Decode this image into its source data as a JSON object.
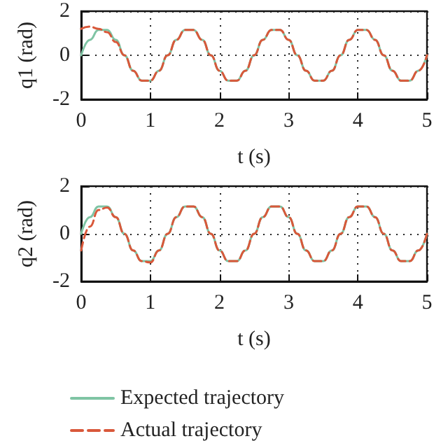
{
  "chart_data": [
    {
      "type": "line",
      "ylabel": "q1 (rad)",
      "xlabel": "t (s)",
      "xlim": [
        0,
        5
      ],
      "xticks": [
        0,
        1,
        2,
        3,
        4,
        5
      ],
      "ylim": [
        -2,
        2
      ],
      "yticks": [
        -2,
        0,
        2
      ],
      "grid": true,
      "legend": false,
      "marker": "none",
      "series": [
        {
          "color": "#7fc4a4",
          "line_style": "solid",
          "x": [
            0,
            0.125,
            0.25,
            0.375,
            0.5,
            0.625,
            0.75,
            0.875,
            1,
            1.125,
            1.25,
            1.375,
            1.5,
            1.625,
            1.75,
            1.875,
            2,
            2.125,
            2.25,
            2.375,
            2.5,
            2.625,
            2.75,
            2.875,
            3,
            3.125,
            3.25,
            3.375,
            3.5,
            3.625,
            3.75,
            3.875,
            4,
            4.125,
            4.25,
            4.375,
            4.5,
            4.625,
            4.75,
            4.875,
            5
          ],
          "values": [
            0,
            0.7,
            1.15,
            1.15,
            0.7,
            0,
            -0.7,
            -1.15,
            -1.15,
            -0.7,
            0,
            0.7,
            1.15,
            1.15,
            0.7,
            0,
            -0.7,
            -1.15,
            -1.15,
            -0.7,
            0,
            0.7,
            1.15,
            1.15,
            0.7,
            0,
            -0.7,
            -1.15,
            -1.15,
            -0.7,
            0,
            0.7,
            1.15,
            1.15,
            0.7,
            0,
            -0.7,
            -1.15,
            -1.15,
            -0.7,
            0
          ]
        },
        {
          "color": "#d9583a",
          "line_style": "dashed",
          "x": [
            0,
            0.125,
            0.25,
            0.375,
            0.5,
            0.625,
            0.75,
            0.875,
            1,
            1.125,
            1.25,
            1.375,
            1.5,
            1.625,
            1.75,
            1.875,
            2,
            2.125,
            2.25,
            2.375,
            2.5,
            2.625,
            2.75,
            2.875,
            3,
            3.125,
            3.25,
            3.375,
            3.5,
            3.625,
            3.75,
            3.875,
            4,
            4.125,
            4.25,
            4.375,
            4.5,
            4.625,
            4.75,
            4.875,
            5
          ],
          "values": [
            1.2,
            1.3,
            1.2,
            1.05,
            0.6,
            0,
            -0.7,
            -1.15,
            -1.15,
            -0.7,
            0,
            0.7,
            1.15,
            1.15,
            0.7,
            0,
            -0.7,
            -1.15,
            -1.15,
            -0.7,
            0,
            0.7,
            1.15,
            1.15,
            0.7,
            0,
            -0.7,
            -1.15,
            -1.15,
            -0.7,
            0,
            0.7,
            1.15,
            1.15,
            0.7,
            0,
            -0.7,
            -1.15,
            -1.15,
            -0.7,
            0
          ]
        }
      ]
    },
    {
      "type": "line",
      "ylabel": "q2 (rad)",
      "xlabel": "t (s)",
      "xlim": [
        0,
        5
      ],
      "xticks": [
        0,
        1,
        2,
        3,
        4,
        5
      ],
      "ylim": [
        -2,
        2
      ],
      "yticks": [
        -2,
        0,
        2
      ],
      "grid": true,
      "legend": "bottom",
      "marker": "none",
      "series": [
        {
          "name": "Expected trajectory",
          "color": "#7fc4a4",
          "line_style": "solid",
          "x": [
            0,
            0.125,
            0.25,
            0.375,
            0.5,
            0.625,
            0.75,
            0.875,
            1,
            1.125,
            1.25,
            1.375,
            1.5,
            1.625,
            1.75,
            1.875,
            2,
            2.125,
            2.25,
            2.375,
            2.5,
            2.625,
            2.75,
            2.875,
            3,
            3.125,
            3.25,
            3.375,
            3.5,
            3.625,
            3.75,
            3.875,
            4,
            4.125,
            4.25,
            4.375,
            4.5,
            4.625,
            4.75,
            4.875,
            5
          ],
          "values": [
            0,
            0.7,
            1.15,
            1.15,
            0.7,
            0,
            -0.7,
            -1.15,
            -1.15,
            -0.7,
            0,
            0.7,
            1.15,
            1.15,
            0.7,
            0,
            -0.7,
            -1.15,
            -1.15,
            -0.7,
            0,
            0.7,
            1.15,
            1.15,
            0.7,
            0,
            -0.7,
            -1.15,
            -1.15,
            -0.7,
            0,
            0.7,
            1.15,
            1.15,
            0.7,
            0,
            -0.7,
            -1.15,
            -1.15,
            -0.7,
            0
          ]
        },
        {
          "name": "Actual trajectory",
          "color": "#d9583a",
          "line_style": "dashed",
          "x": [
            0,
            0.125,
            0.25,
            0.375,
            0.5,
            0.625,
            0.75,
            0.875,
            1,
            1.125,
            1.25,
            1.375,
            1.5,
            1.625,
            1.75,
            1.875,
            2,
            2.125,
            2.25,
            2.375,
            2.5,
            2.625,
            2.75,
            2.875,
            3,
            3.125,
            3.25,
            3.375,
            3.5,
            3.625,
            3.75,
            3.875,
            4,
            4.125,
            4.25,
            4.375,
            4.5,
            4.625,
            4.75,
            4.875,
            5
          ],
          "values": [
            -0.7,
            0.3,
            1.0,
            1.1,
            0.7,
            0,
            -0.7,
            -1.15,
            -1.2,
            -0.7,
            0,
            0.7,
            1.15,
            1.15,
            0.7,
            0,
            -0.7,
            -1.15,
            -1.15,
            -0.7,
            0,
            0.7,
            1.15,
            1.15,
            0.7,
            0,
            -0.7,
            -1.15,
            -1.15,
            -0.7,
            0,
            0.7,
            1.15,
            1.15,
            0.7,
            0,
            -0.7,
            -1.15,
            -1.15,
            -0.7,
            0
          ]
        }
      ]
    }
  ]
}
